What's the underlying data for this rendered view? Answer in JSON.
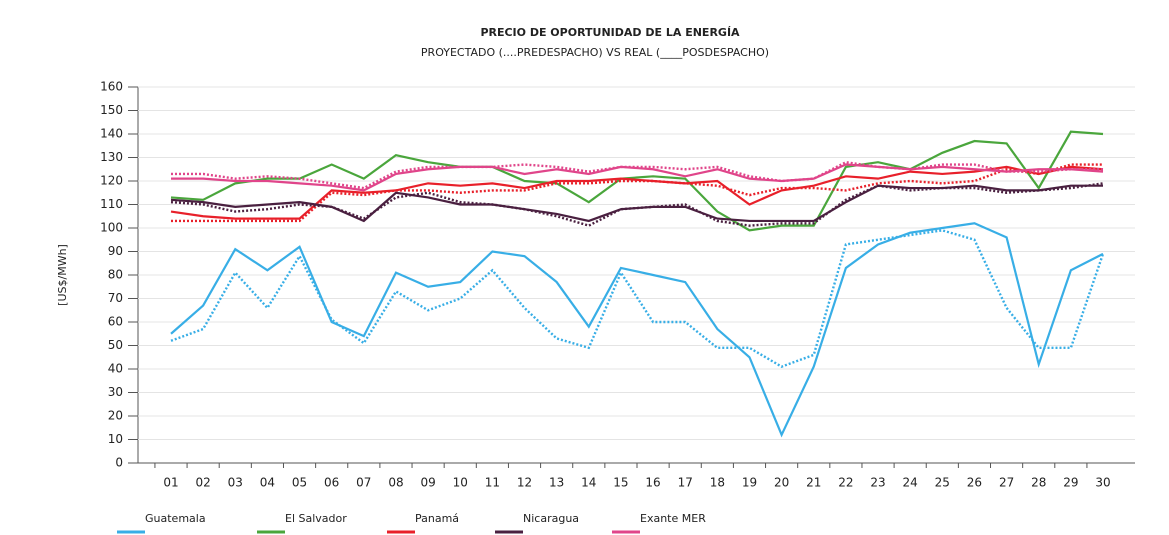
{
  "chart_data": {
    "type": "line",
    "title": "PRECIO DE OPORTUNIDAD DE LA ENERGÍA",
    "subtitle": "PROYECTADO (....PREDESPACHO) VS REAL (____POSDESPACHO)",
    "y_label": "[US$/MWh]",
    "categories": [
      "01",
      "02",
      "03",
      "04",
      "05",
      "06",
      "07",
      "08",
      "09",
      "10",
      "11",
      "12",
      "13",
      "14",
      "15",
      "16",
      "17",
      "18",
      "19",
      "20",
      "21",
      "22",
      "23",
      "24",
      "25",
      "26",
      "27",
      "28",
      "29",
      "30"
    ],
    "ylim": [
      0,
      160
    ],
    "yticks": [
      0,
      10,
      20,
      30,
      40,
      50,
      60,
      70,
      80,
      90,
      100,
      110,
      120,
      130,
      140,
      150,
      160
    ],
    "legend": "bottom",
    "series": [
      {
        "name": "Guatemala",
        "color": "#38aee6",
        "values": [
          55,
          67,
          91,
          82,
          92,
          60,
          54,
          81,
          75,
          77,
          90,
          88,
          77,
          58,
          83,
          80,
          77,
          57,
          45,
          12,
          41,
          83,
          93,
          98,
          100,
          102,
          96,
          42,
          82,
          89
        ],
        "projected": [
          52,
          57,
          81,
          66,
          88,
          61,
          51,
          73,
          65,
          70,
          82,
          66,
          53,
          49,
          81,
          60,
          60,
          49,
          49,
          41,
          46,
          93,
          95,
          97,
          99,
          95,
          66,
          49,
          49,
          89
        ]
      },
      {
        "name": "El Salvador",
        "color": "#4aa63c",
        "values": [
          113,
          112,
          119,
          121,
          121,
          127,
          121,
          131,
          128,
          126,
          126,
          120,
          119,
          111,
          121,
          122,
          121,
          107,
          99,
          101,
          101,
          126,
          128,
          125,
          132,
          137,
          136,
          117,
          141,
          140
        ]
      },
      {
        "name": "Panamá",
        "color": "#e8202a",
        "values": [
          107,
          105,
          104,
          104,
          104,
          116,
          115,
          116,
          119,
          118,
          119,
          117,
          120,
          120,
          121,
          120,
          119,
          120,
          110,
          116,
          118,
          122,
          121,
          124,
          123,
          124,
          126,
          123,
          126,
          125
        ],
        "projected": [
          103,
          103,
          103,
          103,
          103,
          115,
          114,
          116,
          116,
          115,
          116,
          116,
          119,
          119,
          120,
          120,
          119,
          118,
          114,
          117,
          117,
          116,
          119,
          120,
          119,
          120,
          125,
          123,
          127,
          127
        ]
      },
      {
        "name": "Nicaragua",
        "color": "#4a2040",
        "values": [
          112,
          111,
          109,
          110,
          111,
          109,
          103,
          115,
          113,
          110,
          110,
          108,
          106,
          103,
          108,
          109,
          109,
          104,
          103,
          103,
          103,
          111,
          118,
          117,
          117,
          118,
          116,
          116,
          118,
          118
        ],
        "projected": [
          111,
          110,
          107,
          108,
          110,
          109,
          104,
          113,
          115,
          111,
          110,
          108,
          105,
          101,
          108,
          109,
          110,
          103,
          101,
          102,
          102,
          112,
          118,
          116,
          117,
          117,
          115,
          116,
          117,
          119
        ]
      },
      {
        "name": "Exante MER",
        "color": "#e0458a",
        "values": [
          121,
          121,
          120,
          120,
          119,
          118,
          116,
          123,
          125,
          126,
          126,
          123,
          125,
          123,
          126,
          125,
          122,
          125,
          121,
          120,
          121,
          127,
          126,
          125,
          126,
          125,
          124,
          125,
          125,
          124
        ],
        "projected": [
          123,
          123,
          121,
          122,
          121,
          119,
          117,
          124,
          126,
          126,
          126,
          127,
          126,
          124,
          126,
          126,
          125,
          126,
          122,
          120,
          121,
          128,
          126,
          125,
          127,
          127,
          124,
          124,
          125,
          125
        ]
      }
    ]
  }
}
